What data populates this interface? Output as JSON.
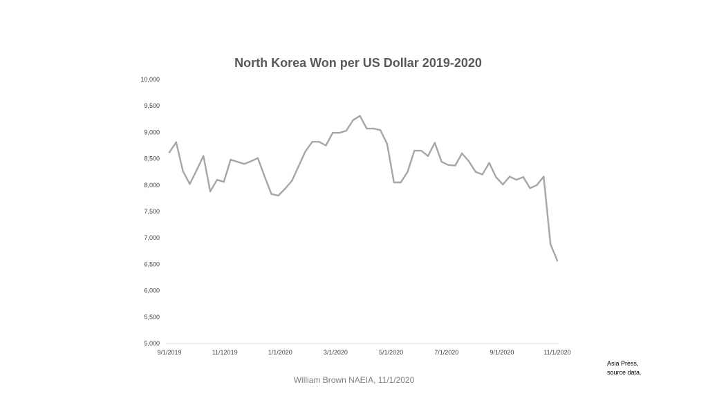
{
  "chart_data": {
    "type": "line",
    "title": "North Korea Won per US Dollar 2019-2020",
    "xlabel": "",
    "ylabel": "",
    "ylim": [
      5000,
      10000
    ],
    "yticks": [
      "5,000",
      "5,500",
      "6,000",
      "6,500",
      "7,000",
      "7,500",
      "8,000",
      "8,500",
      "9,000",
      "9,500",
      "10,000"
    ],
    "ytick_values": [
      5000,
      5500,
      6000,
      6500,
      7000,
      7500,
      8000,
      8500,
      9000,
      9500,
      10000
    ],
    "xticks": [
      "9/1/2019",
      "11/12019",
      "1/1/2020",
      "3/1/2020",
      "5/1/2020",
      "7/1/2020",
      "9/1/2020",
      "11/1/2020"
    ],
    "grid": false,
    "legend": "none",
    "series": [
      {
        "color": "#a6a6a6",
        "values": [
          8620,
          8810,
          8260,
          8020,
          8280,
          8550,
          7880,
          8100,
          8060,
          8480,
          8440,
          8400,
          8450,
          8510,
          8160,
          7830,
          7800,
          7930,
          8080,
          8360,
          8640,
          8820,
          8820,
          8750,
          8990,
          8990,
          9030,
          9230,
          9310,
          9070,
          9070,
          9040,
          8780,
          8050,
          8050,
          8250,
          8650,
          8650,
          8550,
          8800,
          8440,
          8380,
          8370,
          8600,
          8450,
          8250,
          8200,
          8420,
          8150,
          8010,
          8160,
          8100,
          8150,
          7940,
          8000,
          8160,
          6880,
          6570
        ]
      }
    ]
  },
  "source_note": [
    "Asia Press,",
    "source data."
  ],
  "author_note": "William Brown NAEIA, 11/1/2020"
}
